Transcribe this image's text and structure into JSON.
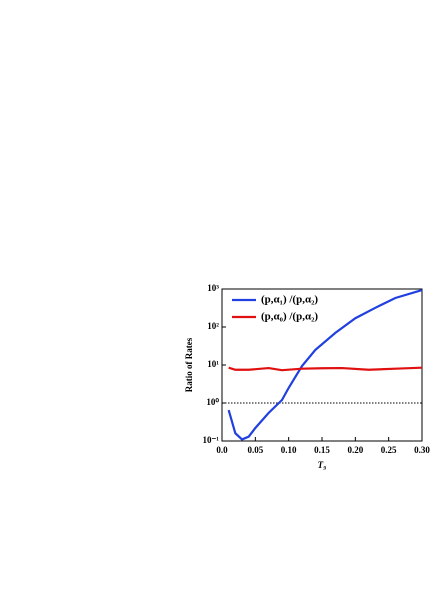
{
  "chart_data": {
    "type": "line",
    "x_label": "T₉",
    "y_label": "Ratio of Rates",
    "xlim": [
      0,
      0.3
    ],
    "ylim": [
      0.1,
      1000
    ],
    "log_y": true,
    "xticks": [
      {
        "value": 0,
        "label": "0.0"
      },
      0.05,
      {
        "value": 0.1,
        "label": "0.10"
      },
      0.15,
      {
        "value": 0.2,
        "label": "0.20"
      },
      0.25,
      {
        "value": 0.3,
        "label": "0.30"
      }
    ],
    "yticks": [
      {
        "value": 0.1,
        "label": "10⁻¹"
      },
      {
        "value": 1,
        "label": "10⁰"
      },
      {
        "value": 10,
        "label": "10¹"
      },
      {
        "value": 100,
        "label": "10²"
      },
      {
        "value": 1000,
        "label": "10³"
      }
    ],
    "hline": 1,
    "legend": "upper left",
    "series": [
      {
        "name": "(p,α₁) /(p,α₂)",
        "color": "#2040e0",
        "x": [
          0.01,
          0.02,
          0.03,
          0.04,
          0.05,
          0.07,
          0.09,
          0.1,
          0.12,
          0.14,
          0.17,
          0.2,
          0.23,
          0.26,
          0.3
        ],
        "values": [
          0.65,
          0.16,
          0.11,
          0.13,
          0.22,
          0.55,
          1.2,
          2.5,
          9.4,
          25,
          70,
          170,
          320,
          580,
          940
        ]
      },
      {
        "name": "(p,α₀) /(p,α₂)",
        "color": "#e01010",
        "x": [
          0.01,
          0.02,
          0.04,
          0.07,
          0.09,
          0.12,
          0.15,
          0.18,
          0.22,
          0.26,
          0.3
        ],
        "values": [
          8.5,
          7.5,
          7.5,
          8.3,
          7.3,
          8,
          8.2,
          8.3,
          7.5,
          8,
          8.5
        ]
      }
    ]
  }
}
